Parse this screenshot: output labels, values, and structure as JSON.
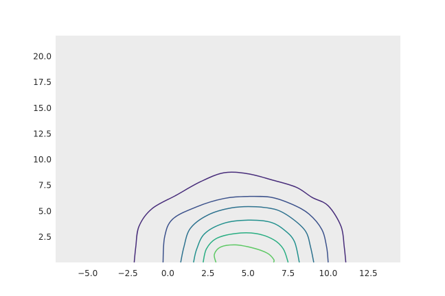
{
  "chart_data": {
    "type": "contour",
    "title": "",
    "xlabel": "",
    "ylabel": "",
    "xlim": [
      -7.0,
      14.5
    ],
    "ylim": [
      0.0,
      22.0
    ],
    "x_ticks": [
      -5.0,
      -2.5,
      0.0,
      2.5,
      5.0,
      7.5,
      10.0,
      12.5
    ],
    "x_tick_labels": [
      "−5.0",
      "−2.5",
      "0.0",
      "2.5",
      "5.0",
      "7.5",
      "10.0",
      "12.5"
    ],
    "y_ticks": [
      2.5,
      5.0,
      7.5,
      10.0,
      12.5,
      15.0,
      17.5,
      20.0
    ],
    "y_tick_labels": [
      "2.5",
      "5.0",
      "7.5",
      "10.0",
      "12.5",
      "15.0",
      "17.5",
      "20.0"
    ],
    "grid": false,
    "background_color": "#ececec",
    "colormap": "viridis",
    "contours": [
      {
        "level": 1,
        "color": "#472c7a",
        "points": [
          [
            -2.1,
            0
          ],
          [
            -2.0,
            1.5
          ],
          [
            -1.8,
            3.5
          ],
          [
            -1.0,
            5.2
          ],
          [
            0.5,
            6.5
          ],
          [
            2.0,
            7.8
          ],
          [
            3.5,
            8.7
          ],
          [
            5.0,
            8.6
          ],
          [
            6.5,
            8.0
          ],
          [
            8.0,
            7.3
          ],
          [
            9.0,
            6.3
          ],
          [
            10.0,
            5.5
          ],
          [
            10.8,
            3.5
          ],
          [
            11.0,
            1.5
          ],
          [
            11.1,
            0
          ]
        ]
      },
      {
        "level": 2,
        "color": "#3b518b",
        "points": [
          [
            -0.3,
            0
          ],
          [
            -0.2,
            2.5
          ],
          [
            0.3,
            4.2
          ],
          [
            1.8,
            5.4
          ],
          [
            3.5,
            6.2
          ],
          [
            5.0,
            6.4
          ],
          [
            6.5,
            6.3
          ],
          [
            7.8,
            5.6
          ],
          [
            8.8,
            4.7
          ],
          [
            9.6,
            3.2
          ],
          [
            9.9,
            1.5
          ],
          [
            10.0,
            0
          ]
        ]
      },
      {
        "level": 3,
        "color": "#2c718e",
        "points": [
          [
            0.8,
            0
          ],
          [
            1.0,
            1.5
          ],
          [
            1.4,
            3.3
          ],
          [
            2.5,
            4.6
          ],
          [
            4.0,
            5.3
          ],
          [
            5.5,
            5.4
          ],
          [
            6.8,
            5.1
          ],
          [
            7.8,
            4.2
          ],
          [
            8.6,
            3.0
          ],
          [
            8.9,
            1.5
          ],
          [
            9.1,
            0
          ]
        ]
      },
      {
        "level": 4,
        "color": "#21908d",
        "points": [
          [
            1.6,
            0
          ],
          [
            1.8,
            1.3
          ],
          [
            2.3,
            2.8
          ],
          [
            3.5,
            3.8
          ],
          [
            5.0,
            4.1
          ],
          [
            6.4,
            3.9
          ],
          [
            7.3,
            3.1
          ],
          [
            7.9,
            2.0
          ],
          [
            8.2,
            0
          ]
        ]
      },
      {
        "level": 5,
        "color": "#27ad81",
        "points": [
          [
            2.2,
            0
          ],
          [
            2.4,
            1.3
          ],
          [
            3.0,
            2.3
          ],
          [
            4.2,
            2.8
          ],
          [
            5.5,
            2.8
          ],
          [
            6.6,
            2.2
          ],
          [
            7.2,
            1.3
          ],
          [
            7.5,
            0
          ]
        ]
      },
      {
        "level": 6,
        "color": "#5cc863",
        "points": [
          [
            3.0,
            0
          ],
          [
            2.9,
            0.8
          ],
          [
            3.3,
            1.5
          ],
          [
            4.2,
            1.7
          ],
          [
            5.3,
            1.4
          ],
          [
            6.2,
            0.9
          ],
          [
            6.6,
            0.3
          ],
          [
            6.6,
            0
          ]
        ]
      }
    ]
  }
}
